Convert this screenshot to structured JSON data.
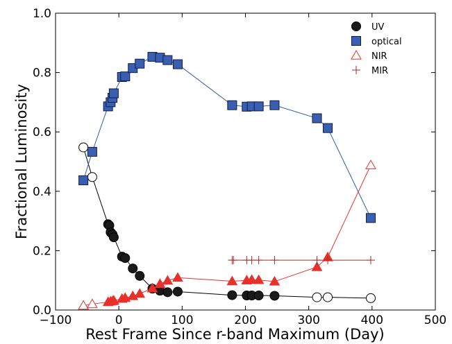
{
  "chart_data": {
    "type": "scatter",
    "title": "",
    "xlabel": "Rest Frame Since r-band Maximum (Day)",
    "ylabel": "Fractional Luminosity",
    "xlim": [
      -100,
      500
    ],
    "ylim": [
      0.0,
      1.0
    ],
    "xticks": [
      -100,
      0,
      100,
      200,
      300,
      400,
      500
    ],
    "yticks": [
      0.0,
      0.2,
      0.4,
      0.6,
      0.8,
      1.0
    ],
    "x_tick_labels": [
      "−100",
      "0",
      "100",
      "200",
      "300",
      "400",
      "500"
    ],
    "y_tick_labels": [
      "0.0",
      "0.2",
      "0.4",
      "0.6",
      "0.8",
      "1.0"
    ],
    "grid": false,
    "legend_position": "top-right",
    "series": [
      {
        "name": "UV",
        "color": "#000000",
        "marker": "circle",
        "points": [
          {
            "x": -56,
            "y": 0.548,
            "estimated": true
          },
          {
            "x": -42,
            "y": 0.448,
            "estimated": true
          },
          {
            "x": -17,
            "y": 0.289
          },
          {
            "x": -15,
            "y": 0.285
          },
          {
            "x": -13,
            "y": 0.262
          },
          {
            "x": -10,
            "y": 0.255
          },
          {
            "x": -8,
            "y": 0.245
          },
          {
            "x": 5,
            "y": 0.18
          },
          {
            "x": 10,
            "y": 0.175
          },
          {
            "x": 22,
            "y": 0.14
          },
          {
            "x": 33,
            "y": 0.115
          },
          {
            "x": 53,
            "y": 0.072
          },
          {
            "x": 65,
            "y": 0.065
          },
          {
            "x": 77,
            "y": 0.06
          },
          {
            "x": 93,
            "y": 0.062
          },
          {
            "x": 179,
            "y": 0.05
          },
          {
            "x": 202,
            "y": 0.049
          },
          {
            "x": 210,
            "y": 0.049
          },
          {
            "x": 221,
            "y": 0.049
          },
          {
            "x": 246,
            "y": 0.048
          },
          {
            "x": 313,
            "y": 0.043,
            "estimated": true
          },
          {
            "x": 330,
            "y": 0.043,
            "estimated": true
          },
          {
            "x": 398,
            "y": 0.04,
            "estimated": true
          }
        ]
      },
      {
        "name": "optical",
        "color": "#3a5fb0",
        "marker": "square",
        "points": [
          {
            "x": -56,
            "y": 0.437
          },
          {
            "x": -42,
            "y": 0.533
          },
          {
            "x": -17,
            "y": 0.686
          },
          {
            "x": -13,
            "y": 0.7
          },
          {
            "x": -10,
            "y": 0.715
          },
          {
            "x": -8,
            "y": 0.73
          },
          {
            "x": 5,
            "y": 0.785
          },
          {
            "x": 10,
            "y": 0.787
          },
          {
            "x": 22,
            "y": 0.815
          },
          {
            "x": 33,
            "y": 0.83
          },
          {
            "x": 53,
            "y": 0.853
          },
          {
            "x": 65,
            "y": 0.85
          },
          {
            "x": 77,
            "y": 0.842
          },
          {
            "x": 93,
            "y": 0.828
          },
          {
            "x": 179,
            "y": 0.69
          },
          {
            "x": 202,
            "y": 0.685
          },
          {
            "x": 210,
            "y": 0.686
          },
          {
            "x": 221,
            "y": 0.686
          },
          {
            "x": 246,
            "y": 0.69
          },
          {
            "x": 313,
            "y": 0.646
          },
          {
            "x": 330,
            "y": 0.613
          },
          {
            "x": 398,
            "y": 0.31
          }
        ]
      },
      {
        "name": "NIR",
        "color": "#e8312a",
        "marker": "triangle",
        "points": [
          {
            "x": -56,
            "y": 0.015,
            "estimated": true
          },
          {
            "x": -42,
            "y": 0.02,
            "estimated": true
          },
          {
            "x": -17,
            "y": 0.027
          },
          {
            "x": -13,
            "y": 0.029
          },
          {
            "x": -10,
            "y": 0.03
          },
          {
            "x": -8,
            "y": 0.032
          },
          {
            "x": 5,
            "y": 0.038
          },
          {
            "x": 10,
            "y": 0.041
          },
          {
            "x": 22,
            "y": 0.047
          },
          {
            "x": 33,
            "y": 0.055
          },
          {
            "x": 53,
            "y": 0.073
          },
          {
            "x": 65,
            "y": 0.088
          },
          {
            "x": 77,
            "y": 0.099
          },
          {
            "x": 93,
            "y": 0.109
          },
          {
            "x": 179,
            "y": 0.097
          },
          {
            "x": 202,
            "y": 0.1
          },
          {
            "x": 210,
            "y": 0.102
          },
          {
            "x": 221,
            "y": 0.101
          },
          {
            "x": 246,
            "y": 0.096
          },
          {
            "x": 313,
            "y": 0.145
          },
          {
            "x": 330,
            "y": 0.178
          },
          {
            "x": 398,
            "y": 0.488,
            "estimated": true
          }
        ]
      },
      {
        "name": "MIR",
        "color": "#a52a2a",
        "marker": "plus",
        "points": [
          {
            "x": 179,
            "y": 0.168
          },
          {
            "x": 181,
            "y": 0.168
          },
          {
            "x": 202,
            "y": 0.168
          },
          {
            "x": 210,
            "y": 0.168
          },
          {
            "x": 221,
            "y": 0.168
          },
          {
            "x": 246,
            "y": 0.168
          },
          {
            "x": 313,
            "y": 0.168
          },
          {
            "x": 330,
            "y": 0.168
          },
          {
            "x": 398,
            "y": 0.168
          }
        ]
      }
    ]
  }
}
